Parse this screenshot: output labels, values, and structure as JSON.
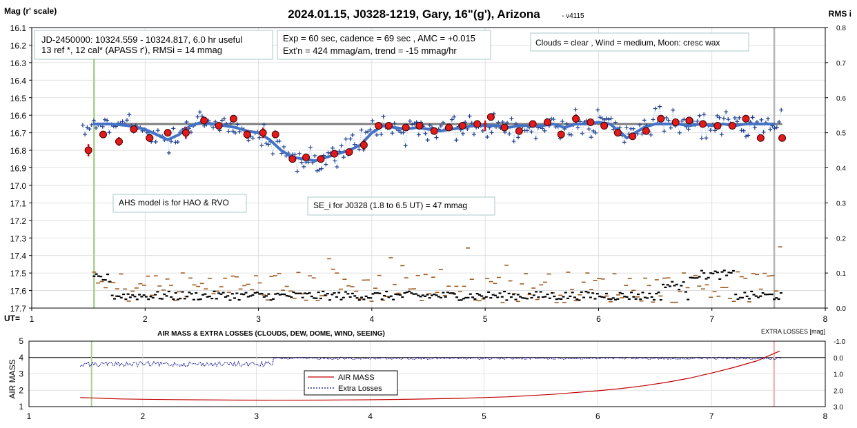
{
  "chart_data": [
    {
      "type": "scatter",
      "title": "2024.01.15, J0328-1219, Gary, 16\"(g'), Arizona",
      "version": "- v4115",
      "ylabel": "Mag (r' scale)",
      "y2label": "RMS i",
      "xlabel": "UT=",
      "xlim": [
        1,
        8
      ],
      "ylim": [
        16.1,
        17.7
      ],
      "y2lim": [
        0.0,
        0.8
      ],
      "x_ticks": [
        "1",
        "2",
        "3",
        "4",
        "5",
        "6",
        "7",
        "8"
      ],
      "y_ticks": [
        "16.1",
        "16.2",
        "16.3",
        "16.4",
        "16.5",
        "16.6",
        "16.7",
        "16.8",
        "16.9",
        "17.0",
        "17.1",
        "17.2",
        "17.3",
        "17.4",
        "17.5",
        "17.6",
        "17.7"
      ],
      "y2_ticks": [
        "0.8",
        "0.7",
        "0.6",
        "0.5",
        "0.4",
        "0.3",
        "0.2",
        "0.1",
        "0.0"
      ],
      "grid": true,
      "annotations": {
        "info1_line1": "JD-2450000: 10324.559 - 10324.817, 6.0 hr useful",
        "info1_line2": "13 ref *, 12 cal*  (APASS r'), RMSi = 14 mmag",
        "info2_line1": "Exp = 60 sec, cadence = 69 sec , AMC = +0.015",
        "info2_line2": "Ext'n = 424 mmag/am, trend = -15 mmag/hr",
        "conditions": "Clouds = clear , Wind = medium,  Moon:  cresc wax",
        "model_note": "AHS model is for HAO & RVO",
        "se_note": "SE_i for J0328 (1.8 to 6.5 UT) = 47 mmag"
      },
      "vertical_markers": {
        "start_ut": 1.55,
        "end_ut": 7.55
      },
      "reference_level": 16.65,
      "model_curve": {
        "x": [
          1.55,
          1.7,
          1.85,
          2.0,
          2.1,
          2.2,
          2.3,
          2.4,
          2.5,
          2.6,
          2.7,
          2.8,
          2.9,
          3.0,
          3.1,
          3.2,
          3.3,
          3.4,
          3.5,
          3.6,
          3.7,
          3.8,
          3.9,
          4.0,
          4.1,
          4.2,
          4.3,
          4.4,
          4.5,
          4.6,
          4.7,
          4.8,
          4.9,
          5.0,
          5.1,
          5.2,
          5.3,
          5.4,
          5.5,
          5.6,
          5.7,
          5.8,
          5.9,
          6.0,
          6.1,
          6.2,
          6.25,
          6.3,
          6.4,
          6.5,
          6.6,
          6.7,
          6.8,
          6.9,
          7.0,
          7.1,
          7.2,
          7.3,
          7.4,
          7.55
        ],
        "y": [
          16.65,
          16.65,
          16.66,
          16.68,
          16.71,
          16.74,
          16.71,
          16.66,
          16.64,
          16.65,
          16.66,
          16.67,
          16.69,
          16.7,
          16.74,
          16.8,
          16.84,
          16.85,
          16.86,
          16.84,
          16.82,
          16.8,
          16.77,
          16.7,
          16.66,
          16.67,
          16.68,
          16.67,
          16.68,
          16.69,
          16.68,
          16.67,
          16.66,
          16.66,
          16.66,
          16.67,
          16.66,
          16.66,
          16.66,
          16.65,
          16.67,
          16.65,
          16.65,
          16.64,
          16.65,
          16.7,
          16.73,
          16.71,
          16.67,
          16.65,
          16.65,
          16.65,
          16.66,
          16.65,
          16.66,
          16.65,
          16.66,
          16.65,
          16.65,
          16.65
        ]
      },
      "binned_points": {
        "x": [
          1.5,
          1.63,
          1.77,
          1.9,
          2.04,
          2.2,
          2.36,
          2.52,
          2.65,
          2.78,
          2.9,
          3.04,
          3.15,
          3.3,
          3.42,
          3.55,
          3.67,
          3.8,
          3.93,
          4.06,
          4.15,
          4.3,
          4.42,
          4.55,
          4.68,
          4.8,
          4.93,
          5.05,
          5.17,
          5.3,
          5.42,
          5.55,
          5.67,
          5.8,
          5.93,
          6.05,
          6.17,
          6.3,
          6.42,
          6.55,
          6.68,
          6.8,
          6.92,
          7.05,
          7.18,
          7.3,
          7.43,
          7.62
        ],
        "y": [
          16.8,
          16.71,
          16.75,
          16.68,
          16.73,
          16.7,
          16.7,
          16.63,
          16.66,
          16.62,
          16.71,
          16.7,
          16.71,
          16.85,
          16.84,
          16.85,
          16.82,
          16.81,
          16.77,
          16.66,
          16.66,
          16.67,
          16.66,
          16.69,
          16.67,
          16.66,
          16.65,
          16.61,
          16.67,
          16.69,
          16.65,
          16.64,
          16.71,
          16.62,
          16.64,
          16.66,
          16.7,
          16.72,
          16.69,
          16.62,
          16.64,
          16.63,
          16.65,
          16.66,
          16.66,
          16.62,
          16.73,
          16.73
        ]
      },
      "error_bars": [
        {
          "x": 1.5,
          "y": 16.8,
          "err": 0.035
        },
        {
          "x": 1.77,
          "y": 16.75,
          "err": 0.025
        },
        {
          "x": 2.36,
          "y": 16.7,
          "err": 0.035
        },
        {
          "x": 2.9,
          "y": 16.71,
          "err": 0.025
        },
        {
          "x": 3.04,
          "y": 16.7,
          "err": 0.03
        },
        {
          "x": 3.93,
          "y": 16.77,
          "err": 0.03
        },
        {
          "x": 5.0,
          "y": 16.66,
          "err": 0.03
        },
        {
          "x": 5.8,
          "y": 16.62,
          "err": 0.025
        }
      ],
      "rms_series": [
        {
          "name": "scatter",
          "x_range": [
            1.55,
            7.62
          ],
          "level_y2": 0.06
        },
        {
          "name": "running",
          "x_range": [
            1.55,
            7.62
          ],
          "level_y2": 0.035
        }
      ]
    },
    {
      "type": "line",
      "title": "AIR MASS & EXTRA LOSSES (CLOUDS, DEW, DOME, WIND, SEEING)",
      "ylabel": "AIR MASS",
      "y2label": "EXTRA LOSSES [mag]",
      "xlim": [
        1,
        8
      ],
      "ylim": [
        1,
        5
      ],
      "y2lim": [
        -1.0,
        3.0
      ],
      "x_ticks": [
        "1",
        "2",
        "3",
        "4",
        "5",
        "6",
        "7",
        "8"
      ],
      "y_ticks": [
        "5",
        "4",
        "3",
        "2",
        "1"
      ],
      "y2_ticks": [
        "-1.0",
        "0.0",
        "1.0",
        "2.0",
        "3.0"
      ],
      "legend": {
        "placement": "center",
        "entries": [
          "AIR MASS",
          "Extra Losses"
        ]
      },
      "air_mass": {
        "x": [
          1.45,
          1.6,
          1.8,
          2.0,
          2.4,
          2.8,
          3.2,
          3.6,
          4.0,
          4.4,
          4.8,
          5.2,
          5.6,
          6.0,
          6.2,
          6.4,
          6.6,
          6.8,
          7.0,
          7.2,
          7.4,
          7.5,
          7.6
        ],
        "y": [
          1.55,
          1.52,
          1.47,
          1.45,
          1.42,
          1.4,
          1.39,
          1.4,
          1.42,
          1.46,
          1.51,
          1.6,
          1.75,
          1.97,
          2.1,
          2.27,
          2.48,
          2.73,
          3.05,
          3.4,
          3.8,
          4.1,
          4.4
        ]
      },
      "extra_losses": {
        "segments": [
          {
            "x_range": [
              1.45,
              3.15
            ],
            "level": 0.4,
            "jitter": 0.15
          },
          {
            "x_range": [
              3.15,
              7.62
            ],
            "level": 0.05,
            "jitter": 0.07
          }
        ]
      },
      "vertical_markers": {
        "start_ut": 1.55,
        "end_ut": 7.55
      }
    }
  ]
}
